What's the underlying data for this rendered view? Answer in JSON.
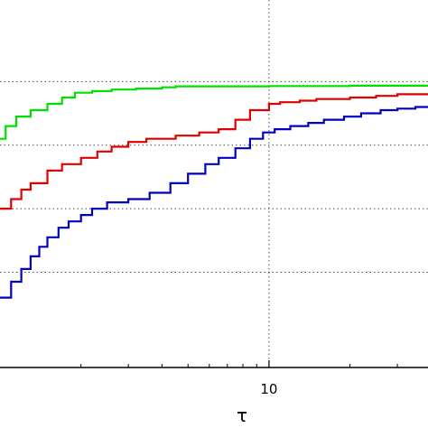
{
  "chart_data": {
    "type": "line",
    "title": "",
    "xlabel": "τ",
    "ylabel": "",
    "x_scale": "log",
    "xlim": [
      1,
      39
    ],
    "ylim": [
      0,
      1.1
    ],
    "grid": true,
    "x_major_ticks": [
      {
        "value": 10,
        "label": "10"
      }
    ],
    "x_minor_ticks": [
      2,
      3,
      4,
      5,
      6,
      7,
      8,
      9,
      20,
      30
    ],
    "y_gridlines": [
      0.3,
      0.5,
      0.7,
      0.9
    ],
    "series": [
      {
        "color": "#00e000",
        "points": [
          [
            1,
            0.72
          ],
          [
            1.05,
            0.76
          ],
          [
            1.15,
            0.79
          ],
          [
            1.3,
            0.81
          ],
          [
            1.5,
            0.83
          ],
          [
            1.7,
            0.85
          ],
          [
            1.9,
            0.865
          ],
          [
            2.2,
            0.87
          ],
          [
            2.6,
            0.875
          ],
          [
            3.2,
            0.878
          ],
          [
            4,
            0.882
          ],
          [
            4.5,
            0.885
          ],
          [
            5,
            0.885
          ],
          [
            10,
            0.886
          ],
          [
            20,
            0.887
          ],
          [
            37,
            0.887
          ],
          [
            39,
            0.89
          ]
        ]
      },
      {
        "color": "#e00000",
        "points": [
          [
            1,
            0.5
          ],
          [
            1.1,
            0.53
          ],
          [
            1.2,
            0.56
          ],
          [
            1.3,
            0.58
          ],
          [
            1.5,
            0.62
          ],
          [
            1.7,
            0.64
          ],
          [
            2.0,
            0.66
          ],
          [
            2.3,
            0.68
          ],
          [
            2.6,
            0.695
          ],
          [
            3.0,
            0.71
          ],
          [
            3.5,
            0.72
          ],
          [
            4.5,
            0.73
          ],
          [
            5.5,
            0.74
          ],
          [
            6.5,
            0.75
          ],
          [
            7.5,
            0.78
          ],
          [
            8.5,
            0.81
          ],
          [
            10,
            0.83
          ],
          [
            11,
            0.835
          ],
          [
            13,
            0.84
          ],
          [
            15,
            0.845
          ],
          [
            20,
            0.85
          ],
          [
            25,
            0.855
          ],
          [
            30,
            0.86
          ],
          [
            39,
            0.86
          ]
        ]
      },
      {
        "color": "#0000c0",
        "points": [
          [
            1,
            0.22
          ],
          [
            1.1,
            0.27
          ],
          [
            1.2,
            0.31
          ],
          [
            1.3,
            0.35
          ],
          [
            1.4,
            0.38
          ],
          [
            1.5,
            0.41
          ],
          [
            1.65,
            0.44
          ],
          [
            1.8,
            0.46
          ],
          [
            2.0,
            0.48
          ],
          [
            2.2,
            0.5
          ],
          [
            2.5,
            0.52
          ],
          [
            3.0,
            0.53
          ],
          [
            3.6,
            0.55
          ],
          [
            4.3,
            0.58
          ],
          [
            5.0,
            0.61
          ],
          [
            5.8,
            0.64
          ],
          [
            6.5,
            0.66
          ],
          [
            7.5,
            0.69
          ],
          [
            8.5,
            0.72
          ],
          [
            9.5,
            0.74
          ],
          [
            10.5,
            0.75
          ],
          [
            12,
            0.76
          ],
          [
            14,
            0.77
          ],
          [
            16,
            0.78
          ],
          [
            19,
            0.79
          ],
          [
            22,
            0.8
          ],
          [
            26,
            0.81
          ],
          [
            30,
            0.815
          ],
          [
            35,
            0.82
          ],
          [
            39,
            0.82
          ]
        ]
      }
    ]
  }
}
